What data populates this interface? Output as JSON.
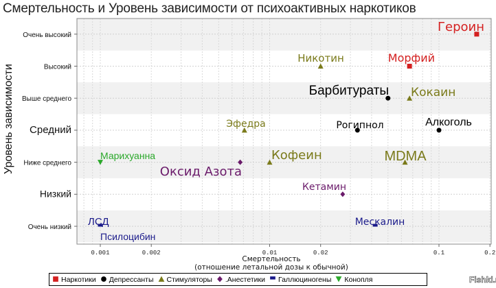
{
  "chart_data": {
    "type": "scatter",
    "title": "Смертельность и Уровень зависимости от психоактивных наркотиков",
    "xlabel": "Смертельность",
    "xlabel_sub": "(отношение летальной дозы к обычной)",
    "ylabel": "Уровень зависимости",
    "xscale": "log",
    "xlim": [
      0.00073,
      0.2
    ],
    "xticks": [
      {
        "v": 0.001,
        "label": "0.001"
      },
      {
        "v": 0.002,
        "label": "0.002"
      },
      {
        "v": 0.01,
        "label": "0.01"
      },
      {
        "v": 0.02,
        "label": "0.02"
      },
      {
        "v": 0.1,
        "label": "0.1"
      },
      {
        "v": 0.2,
        "label": "0.2"
      }
    ],
    "ycategories": [
      "Очень низкий",
      "Низкий",
      "Ниже среднего",
      "Средний",
      "Выше среднего",
      "Высокий",
      "Очень высокий"
    ],
    "grid": true,
    "legend_position": "bottom",
    "groups": [
      {
        "name": "Наркотики",
        "color": "#d42020",
        "marker": "square"
      },
      {
        "name": "Депрессанты",
        "color": "#000000",
        "marker": "circle"
      },
      {
        "name": "Стимуляторы",
        "color": "#7a7a1a",
        "marker": "triangle-up"
      },
      {
        "name": ".Анестетики",
        "color": "#6a1a6a",
        "marker": "diamond"
      },
      {
        "name": "Галлюциногены",
        "color": "#1a1a8a",
        "marker": "square"
      },
      {
        "name": "Конопля",
        "color": "#2aa82a",
        "marker": "triangle-down"
      }
    ],
    "points": [
      {
        "label": "Героин",
        "group": 0,
        "x": 0.167,
        "y": 7
      },
      {
        "label": "Морфий",
        "group": 0,
        "x": 0.067,
        "y": 6
      },
      {
        "label": "Никотин",
        "group": 2,
        "x": 0.02,
        "y": 6
      },
      {
        "label": "Барбитураты",
        "group": 1,
        "x": 0.05,
        "y": 5
      },
      {
        "label": "Кокаин",
        "group": 2,
        "x": 0.067,
        "y": 5
      },
      {
        "label": "Эфедра",
        "group": 2,
        "x": 0.0071,
        "y": 4
      },
      {
        "label": "Рогипнол",
        "group": 1,
        "x": 0.033,
        "y": 4
      },
      {
        "label": "Алкоголь",
        "group": 1,
        "x": 0.1,
        "y": 4
      },
      {
        "label": "Марихуанна",
        "group": 5,
        "x": 0.001,
        "y": 3
      },
      {
        "label": "Оксид Азота",
        "group": 3,
        "x": 0.0067,
        "y": 3
      },
      {
        "label": "Кофеин",
        "group": 2,
        "x": 0.01,
        "y": 3
      },
      {
        "label": "MDMA",
        "group": 2,
        "x": 0.063,
        "y": 3
      },
      {
        "label": "Кетамин",
        "group": 3,
        "x": 0.027,
        "y": 2
      },
      {
        "label": "ЛСД",
        "group": 4,
        "x": 0.001,
        "y": 1
      },
      {
        "label": "Псилоцибин",
        "group": 4,
        "x": 0.001,
        "y": 1
      },
      {
        "label": "Мескалин",
        "group": 4,
        "x": 0.042,
        "y": 1
      }
    ]
  },
  "watermark": "Fishki.net"
}
